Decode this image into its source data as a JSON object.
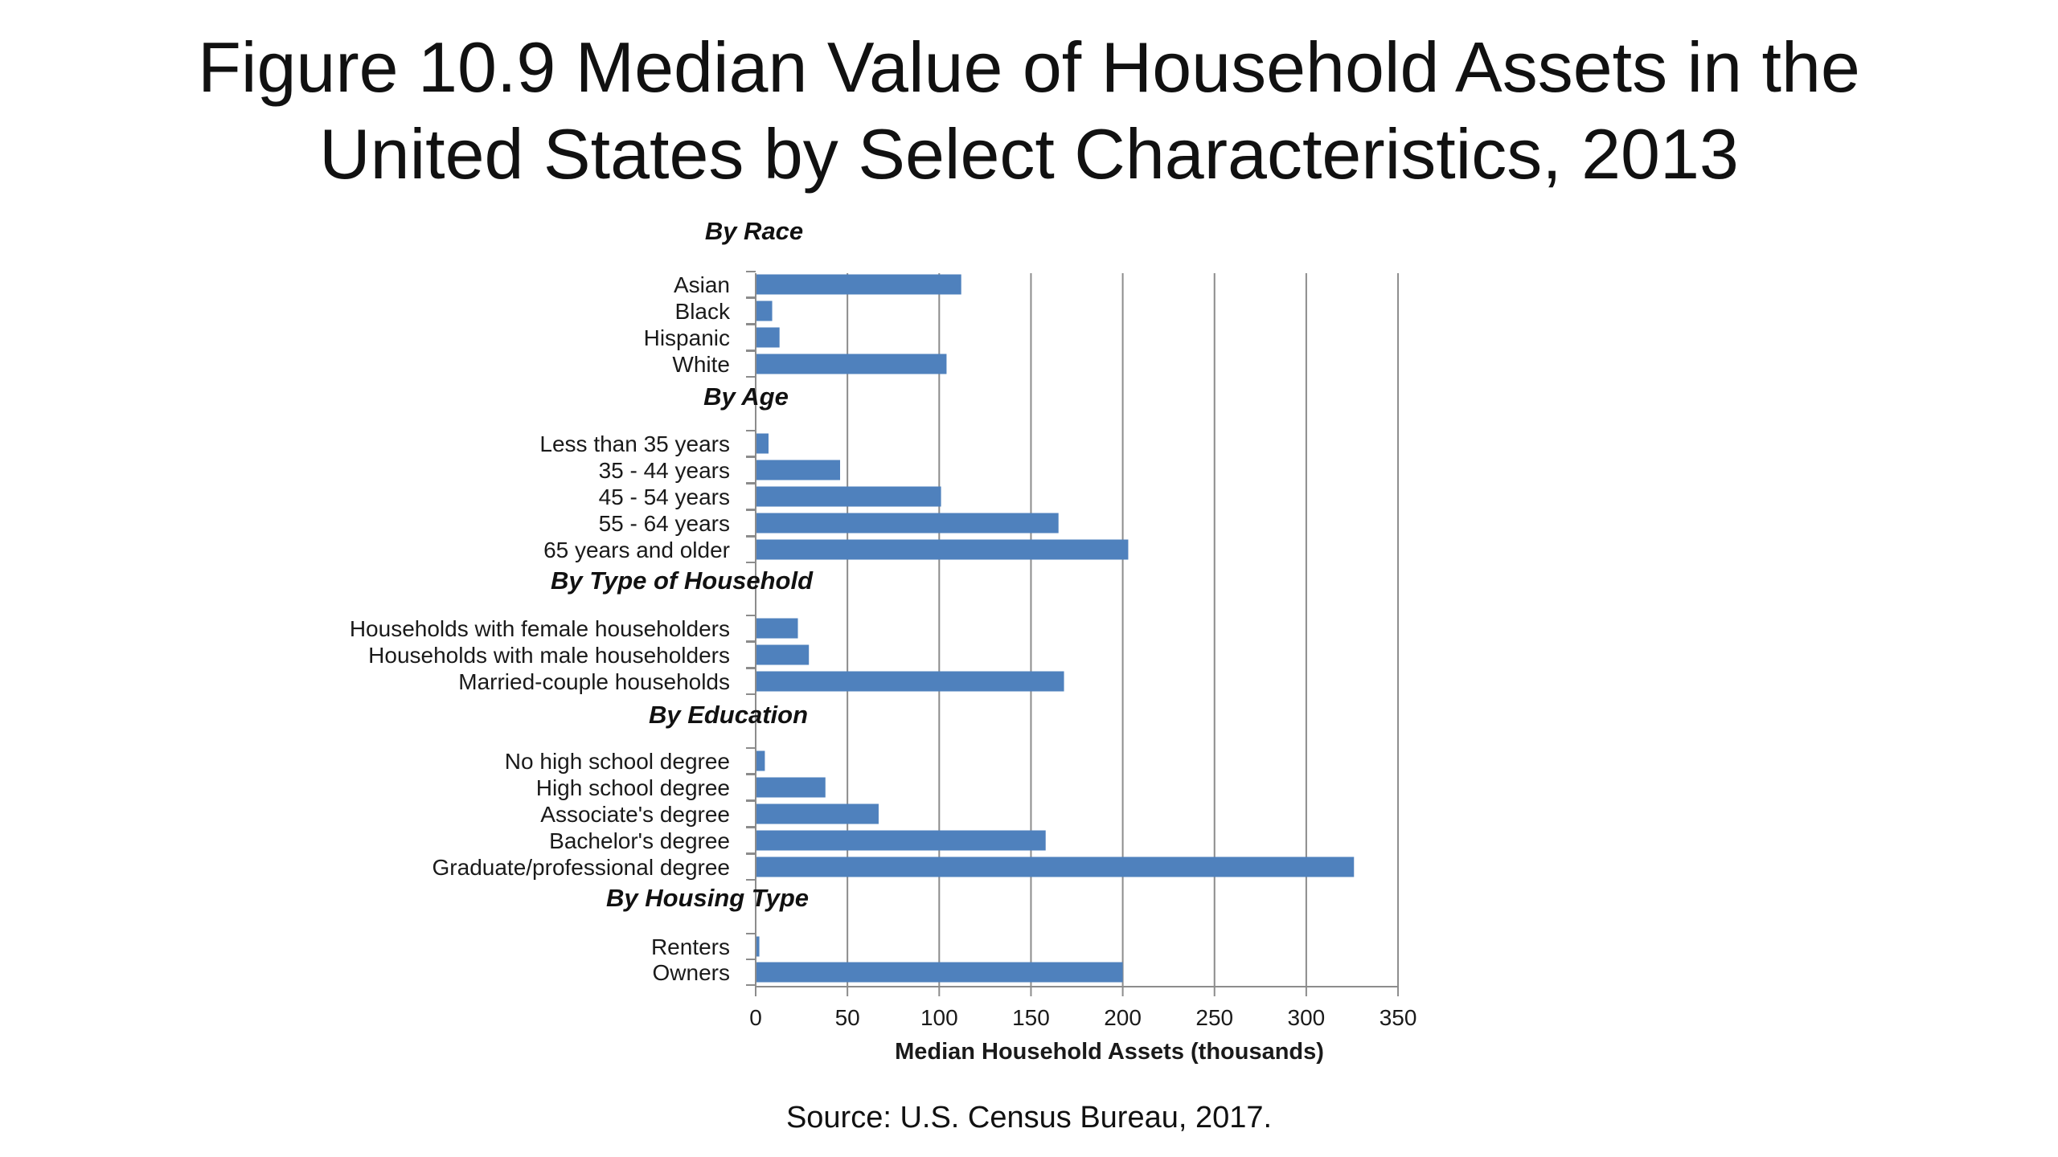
{
  "slide": {
    "title_line1": "Figure 10.9 Median Value of Household Assets in the",
    "title_line2": "United States by Select Characteristics, 2013",
    "source": "Source: U.S. Census Bureau, 2017."
  },
  "chart_data": {
    "type": "bar",
    "orientation": "horizontal",
    "title": "Figure 10.9 Median Value of Household Assets in the United States by Select Characteristics, 2013",
    "xlabel": "Median Household Assets (thousands)",
    "ylabel": "",
    "xlim": [
      0,
      350
    ],
    "xticks": [
      0,
      50,
      100,
      150,
      200,
      250,
      300,
      350
    ],
    "grid": true,
    "legend": "none",
    "bar_color": "#4F81BD",
    "groups": [
      {
        "heading": "By Race",
        "categories": [
          "Asian",
          "Black",
          "Hispanic",
          "White"
        ],
        "values": [
          112,
          9,
          13,
          104
        ]
      },
      {
        "heading": "By Age",
        "categories": [
          "Less than 35 years",
          "35 - 44 years",
          "45 - 54 years",
          "55 - 64 years",
          "65 years and older"
        ],
        "values": [
          7,
          46,
          101,
          165,
          203
        ]
      },
      {
        "heading": "By Type of Household",
        "categories": [
          "Households with female householders",
          "Households with male householders",
          "Married-couple households"
        ],
        "values": [
          23,
          29,
          168
        ]
      },
      {
        "heading": "By Education",
        "categories": [
          "No high school degree",
          "High school degree",
          "Associate's degree",
          "Bachelor's degree",
          "Graduate/professional degree"
        ],
        "values": [
          5,
          38,
          67,
          158,
          326
        ]
      },
      {
        "heading": "By Housing Type",
        "categories": [
          "Renters",
          "Owners"
        ],
        "values": [
          2,
          200
        ]
      }
    ]
  }
}
